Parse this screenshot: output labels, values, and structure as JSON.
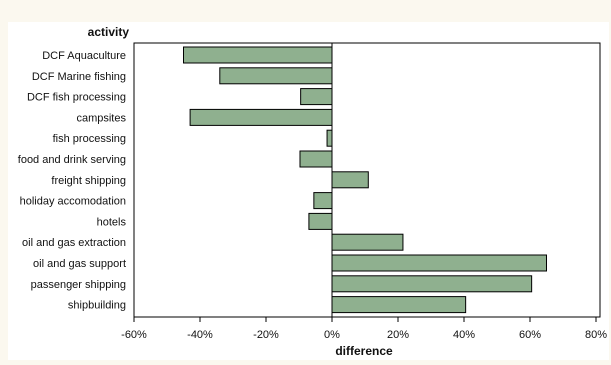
{
  "chart_data": {
    "type": "bar",
    "orientation": "horizontal",
    "ylabel": "activity",
    "xlabel": "difference",
    "categories": [
      "DCF Aquaculture",
      "DCF Marine fishing",
      "DCF fish processing",
      "campsites",
      "fish processing",
      "food and drink serving",
      "freight shipping",
      "holiday accomodation",
      "hotels",
      "oil and gas extraction",
      "oil and gas support",
      "passenger shipping",
      "shipbuilding"
    ],
    "values": [
      -0.45,
      -0.34,
      -0.095,
      -0.43,
      -0.015,
      -0.097,
      0.11,
      -0.055,
      -0.07,
      0.215,
      0.65,
      0.605,
      0.405
    ],
    "xlim": [
      -0.6,
      0.8
    ],
    "xticks": [
      -0.6,
      -0.4,
      -0.2,
      0,
      0.2,
      0.4,
      0.6,
      0.8
    ],
    "xtick_labels": [
      "-60%",
      "-40%",
      "-20%",
      "0%",
      "20%",
      "40%",
      "60%",
      "80%"
    ],
    "reference_line": 0,
    "bar_color": "#8fb08f",
    "bar_edge_color": "#000000",
    "grid": false,
    "legend": "none"
  }
}
